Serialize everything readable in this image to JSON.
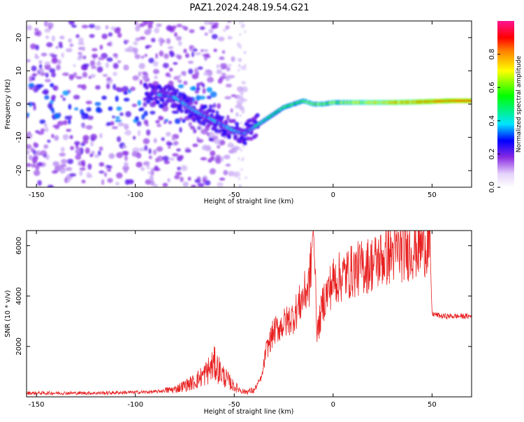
{
  "title": "PAZ1.2024.248.19.54.G21",
  "chart_data": [
    {
      "type": "heatmap",
      "title": "PAZ1.2024.248.19.54.G21",
      "xlabel": "Height of straight line (km)",
      "ylabel": "Frequency (Hz)",
      "xlim": [
        -155,
        70
      ],
      "ylim": [
        -25,
        25
      ],
      "xticks": [
        -150,
        -100,
        -50,
        0,
        50
      ],
      "yticks": [
        -20,
        -10,
        0,
        10,
        20
      ],
      "colorbar": {
        "label": "Normalized spectral amplitude",
        "range": [
          0.0,
          1.0
        ],
        "ticks": [
          "0.0",
          "0.2",
          "0.4",
          "0.6",
          "0.8"
        ],
        "colormap": [
          "#ffffff",
          "#8a2be2",
          "#0000ff",
          "#00e5ff",
          "#00ff00",
          "#ffff00",
          "#ff8000",
          "#ff0000",
          "#ff1493"
        ]
      },
      "ridge": {
        "x": [
          -90,
          -80,
          -70,
          -60,
          -50,
          -45,
          -40,
          -35,
          -30,
          -25,
          -20,
          -15,
          -10,
          -5,
          0,
          10,
          20,
          30,
          40,
          50,
          60,
          70
        ],
        "y": [
          3,
          2,
          -2,
          -5,
          -8,
          -9,
          -7,
          -5,
          -3,
          -1,
          0,
          1,
          0,
          0,
          0.5,
          0.5,
          0.5,
          0.5,
          0.6,
          0.8,
          1,
          1
        ]
      },
      "noise_cluster": {
        "x_range": [
          -155,
          -40
        ],
        "y_range": [
          -25,
          25
        ]
      }
    },
    {
      "type": "line",
      "xlabel": "Height of straight line (km)",
      "ylabel": "SNR (10 * v/v)",
      "xlim": [
        -155,
        70
      ],
      "ylim": [
        0,
        6600
      ],
      "xticks": [
        -150,
        -100,
        -50,
        0,
        50
      ],
      "yticks": [
        2000,
        4000,
        6000
      ],
      "line_color": "#e82020",
      "x": [
        -155,
        -140,
        -120,
        -100,
        -90,
        -80,
        -70,
        -65,
        -60,
        -55,
        -50,
        -45,
        -40,
        -36,
        -34,
        -30,
        -25,
        -20,
        -15,
        -12,
        -10,
        -8,
        -5,
        0,
        10,
        20,
        30,
        40,
        45,
        48,
        49,
        50,
        55,
        60,
        70
      ],
      "y": [
        150,
        150,
        150,
        180,
        200,
        300,
        600,
        900,
        1300,
        800,
        400,
        200,
        250,
        800,
        1800,
        2600,
        2900,
        3200,
        4000,
        4500,
        6400,
        2500,
        3800,
        4600,
        5000,
        5300,
        5700,
        5900,
        6000,
        6150,
        5900,
        3300,
        3200,
        3200,
        3200
      ]
    }
  ]
}
